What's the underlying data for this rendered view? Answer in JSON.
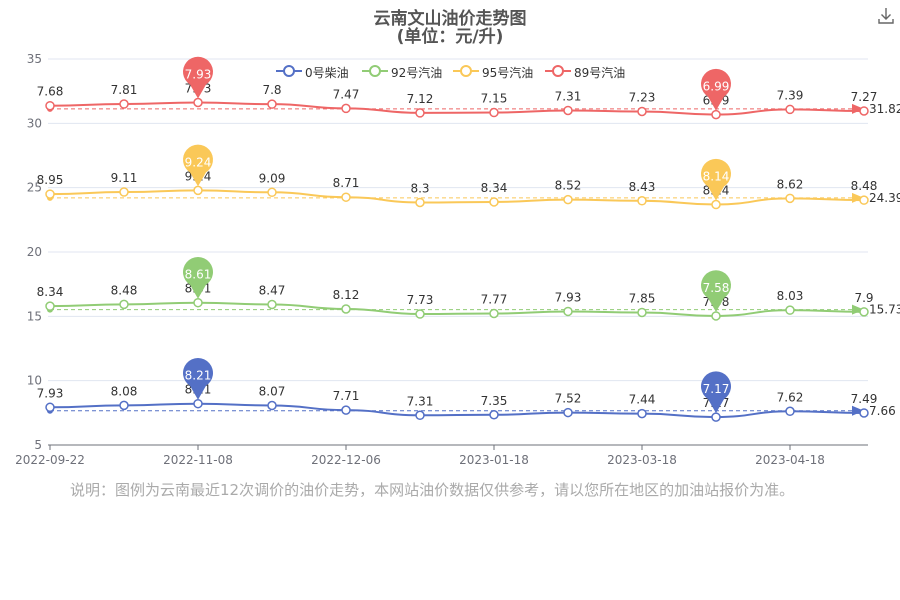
{
  "chart_data": {
    "type": "line",
    "title": "云南文山油价走势图",
    "subtitle": "(单位：元/升)",
    "x_tick_labels": [
      "2022-09-22",
      "2022-11-08",
      "2022-12-06",
      "2023-01-18",
      "2023-03-18",
      "2023-04-18"
    ],
    "ylim": [
      5,
      35
    ],
    "y_ticks": [
      5,
      10,
      15,
      20,
      25,
      30,
      35
    ],
    "legend_position": "top-center",
    "series": [
      {
        "name": "0号柴油",
        "color": "#5470c6",
        "values": [
          7.93,
          8.08,
          8.21,
          8.07,
          7.71,
          7.31,
          7.35,
          7.52,
          7.44,
          7.17,
          7.62,
          7.49
        ],
        "labels": [
          "7.93",
          "8.08",
          "8.21",
          "8.07",
          "7.71",
          "7.31",
          "7.35",
          "7.52",
          "7.44",
          "7.17",
          "7.62",
          "7.49"
        ],
        "max": {
          "index": 2,
          "label": "8.21"
        },
        "min": {
          "index": 9,
          "label": "7.17"
        },
        "average": "7.66"
      },
      {
        "name": "92号汽油",
        "color": "#91cc75",
        "values": [
          8.34,
          8.48,
          8.61,
          8.47,
          8.12,
          7.73,
          7.77,
          7.93,
          7.85,
          7.58,
          8.03,
          7.9
        ],
        "labels": [
          "8.34",
          "8.48",
          "8.61",
          "8.47",
          "8.12",
          "7.73",
          "7.77",
          "7.93",
          "7.85",
          "7.58",
          "8.03",
          "7.9"
        ],
        "max": {
          "index": 2,
          "label": "8.61"
        },
        "min": {
          "index": 9,
          "label": "7.58"
        },
        "average": "15.73"
      },
      {
        "name": "95号汽油",
        "color": "#fac858",
        "values": [
          8.95,
          9.11,
          9.24,
          9.09,
          8.71,
          8.3,
          8.34,
          8.52,
          8.43,
          8.14,
          8.62,
          8.48
        ],
        "labels": [
          "8.95",
          "9.11",
          "9.24",
          "9.09",
          "8.71",
          "8.3",
          "8.34",
          "8.52",
          "8.43",
          "8.14",
          "8.62",
          "8.48"
        ],
        "max": {
          "index": 2,
          "label": "9.24"
        },
        "min": {
          "index": 9,
          "label": "8.14"
        },
        "average": "24.39"
      },
      {
        "name": "89号汽油",
        "color": "#ee6666",
        "values": [
          7.68,
          7.81,
          7.93,
          7.8,
          7.47,
          7.12,
          7.15,
          7.31,
          7.23,
          6.99,
          7.39,
          7.27
        ],
        "labels": [
          "7.68",
          "7.81",
          "7.93",
          "7.8",
          "7.47",
          "7.12",
          "7.15",
          "7.31",
          "7.23",
          "6.99",
          "7.39",
          "7.27"
        ],
        "max": {
          "index": 2,
          "label": "7.93"
        },
        "min": {
          "index": 9,
          "label": "6.99"
        },
        "average": "31.82"
      }
    ]
  },
  "note": "说明：图例为云南最近12次调价的油价走势，本网站油价数据仅供参考，请以您所在地区的加油站报价为准。",
  "download_icon": "download-icon",
  "grid": true
}
